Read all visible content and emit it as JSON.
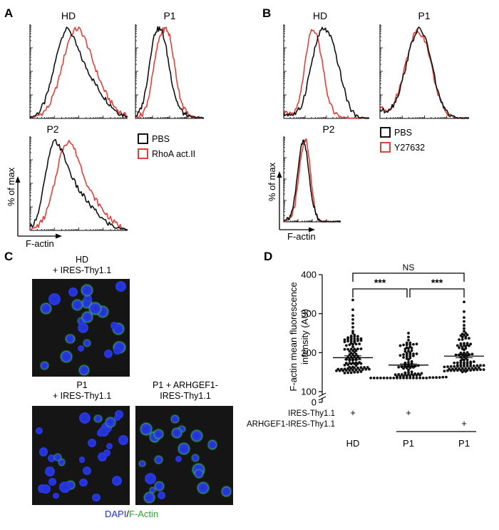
{
  "panels": {
    "A": {
      "label": "A",
      "titles": [
        "HD",
        "P1",
        "P2"
      ],
      "legend": [
        "PBS",
        "RhoA act.II"
      ],
      "ylabel": "% of max",
      "xlabel": "F-actin"
    },
    "B": {
      "label": "B",
      "titles": [
        "HD",
        "P1",
        "P2"
      ],
      "legend": [
        "PBS",
        "Y27632"
      ],
      "ylabel": "% of max",
      "xlabel": "F-actin"
    },
    "C": {
      "label": "C",
      "titles": [
        "HD\n+ IRES-Thy1.1",
        "P1\n+ IRES-Thy1.1",
        "P1 + ARHGEF1-\nIRES-Thy1.1"
      ],
      "caption_dapi": "DAPI",
      "caption_sep": "/",
      "caption_factin": "F-Actin"
    },
    "D": {
      "label": "D",
      "significance": [
        "NS",
        "***",
        "***"
      ],
      "row_labels": [
        "IRES-Thy1.1",
        "ARHGEF1-IRES-Thy1.1"
      ],
      "plus": "+",
      "groups": [
        "HD",
        "P1",
        "P1"
      ]
    }
  },
  "colors": {
    "pbs": "#111111",
    "treated": "#e0403a",
    "dapi": "#1f2fd0",
    "factin": "#3ec93e",
    "scatter": "#111111"
  },
  "chart_data": [
    {
      "type": "line",
      "panel": "A",
      "title": "HD",
      "ylabel": "% of max",
      "xlabel": "F-actin",
      "x": [
        0,
        0.05,
        0.1,
        0.15,
        0.2,
        0.25,
        0.3,
        0.35,
        0.4,
        0.45,
        0.5,
        0.55,
        0.6,
        0.65,
        0.7,
        0.75,
        0.8,
        0.85,
        0.9,
        0.95,
        1
      ],
      "series": [
        {
          "name": "PBS",
          "values": [
            1,
            3,
            8,
            18,
            35,
            58,
            82,
            97,
            100,
            88,
            75,
            62,
            52,
            42,
            33,
            25,
            18,
            12,
            7,
            4,
            2
          ]
        },
        {
          "name": "RhoA act.II",
          "values": [
            1,
            2,
            4,
            8,
            15,
            28,
            45,
            68,
            88,
            98,
            100,
            92,
            78,
            62,
            47,
            34,
            23,
            15,
            9,
            5,
            2
          ]
        }
      ]
    },
    {
      "type": "line",
      "panel": "A",
      "title": "P1",
      "ylabel": "% of max",
      "xlabel": "F-actin",
      "x": [
        0,
        0.05,
        0.1,
        0.15,
        0.2,
        0.25,
        0.3,
        0.35,
        0.4,
        0.45,
        0.5,
        0.55,
        0.6,
        0.65,
        0.7,
        0.75,
        0.8,
        0.85,
        0.9,
        0.95,
        1
      ],
      "series": [
        {
          "name": "PBS",
          "values": [
            2,
            6,
            15,
            32,
            58,
            85,
            98,
            100,
            95,
            78,
            55,
            35,
            20,
            11,
            6,
            3,
            2,
            1,
            1,
            1,
            0
          ]
        },
        {
          "name": "RhoA act.II",
          "values": [
            1,
            2,
            5,
            12,
            26,
            48,
            72,
            90,
            98,
            100,
            92,
            70,
            45,
            25,
            13,
            6,
            3,
            2,
            1,
            1,
            0
          ]
        }
      ]
    },
    {
      "type": "line",
      "panel": "A",
      "title": "P2",
      "ylabel": "% of max",
      "xlabel": "F-actin",
      "x": [
        0,
        0.05,
        0.1,
        0.15,
        0.2,
        0.25,
        0.3,
        0.35,
        0.4,
        0.45,
        0.5,
        0.55,
        0.6,
        0.65,
        0.7,
        0.75,
        0.8,
        0.85,
        0.9,
        0.95,
        1
      ],
      "series": [
        {
          "name": "PBS",
          "values": [
            3,
            10,
            26,
            55,
            85,
            100,
            95,
            82,
            68,
            55,
            45,
            38,
            30,
            24,
            18,
            12,
            8,
            5,
            3,
            2,
            1
          ]
        },
        {
          "name": "RhoA act.II",
          "values": [
            1,
            3,
            7,
            15,
            30,
            52,
            78,
            95,
            100,
            92,
            78,
            62,
            48,
            38,
            30,
            22,
            16,
            10,
            6,
            3,
            1
          ]
        }
      ]
    },
    {
      "type": "line",
      "panel": "B",
      "title": "HD",
      "ylabel": "% of max",
      "xlabel": "F-actin",
      "x": [
        0,
        0.05,
        0.1,
        0.15,
        0.2,
        0.25,
        0.3,
        0.35,
        0.4,
        0.45,
        0.5,
        0.55,
        0.6,
        0.65,
        0.7,
        0.75,
        0.8,
        0.85,
        0.9,
        0.95,
        1
      ],
      "series": [
        {
          "name": "PBS",
          "values": [
            4,
            5,
            4,
            6,
            12,
            28,
            50,
            72,
            90,
            100,
            98,
            90,
            75,
            55,
            35,
            18,
            8,
            3,
            1,
            0,
            0
          ]
        },
        {
          "name": "Y27632",
          "values": [
            4,
            6,
            5,
            10,
            28,
            62,
            92,
            100,
            88,
            62,
            32,
            14,
            6,
            2,
            1,
            0,
            0,
            0,
            0,
            0,
            0
          ]
        }
      ]
    },
    {
      "type": "line",
      "panel": "B",
      "title": "P1",
      "ylabel": "% of max",
      "xlabel": "F-actin",
      "x": [
        0,
        0.05,
        0.1,
        0.15,
        0.2,
        0.25,
        0.3,
        0.35,
        0.4,
        0.45,
        0.5,
        0.55,
        0.6,
        0.65,
        0.7,
        0.75,
        0.8,
        0.85,
        0.9,
        0.95,
        1
      ],
      "series": [
        {
          "name": "PBS",
          "values": [
            10,
            8,
            10,
            15,
            25,
            42,
            62,
            82,
            95,
            100,
            92,
            75,
            52,
            30,
            15,
            7,
            3,
            1,
            0,
            0,
            0
          ]
        },
        {
          "name": "Y27632",
          "values": [
            12,
            9,
            11,
            16,
            27,
            45,
            66,
            85,
            98,
            96,
            88,
            72,
            48,
            28,
            14,
            6,
            3,
            1,
            0,
            0,
            0
          ]
        }
      ]
    },
    {
      "type": "line",
      "panel": "B",
      "title": "P2",
      "ylabel": "% of max",
      "xlabel": "F-actin",
      "x": [
        0,
        0.05,
        0.1,
        0.15,
        0.2,
        0.25,
        0.3,
        0.35,
        0.4,
        0.45,
        0.5,
        0.55,
        0.6,
        0.65,
        0.7,
        0.75,
        0.8,
        0.85,
        0.9,
        0.95,
        1
      ],
      "series": [
        {
          "name": "PBS",
          "values": [
            2,
            3,
            6,
            14,
            32,
            62,
            92,
            100,
            85,
            55,
            28,
            12,
            4,
            1,
            0,
            0,
            0,
            0,
            0,
            0,
            0
          ]
        },
        {
          "name": "Y27632",
          "values": [
            1,
            2,
            4,
            9,
            22,
            48,
            80,
            98,
            100,
            75,
            40,
            16,
            5,
            1,
            0,
            0,
            0,
            0,
            0,
            0,
            0
          ]
        }
      ]
    },
    {
      "type": "scatter",
      "panel": "D",
      "ylabel": "F-actin mean fluorescence intensity (AU)",
      "ylim": [
        100,
        400
      ],
      "yticks": [
        0,
        100,
        200,
        300,
        400
      ],
      "axis_break": true,
      "categories": [
        "HD",
        "P1",
        "P1"
      ],
      "groups": [
        {
          "label": "HD",
          "IRES-Thy1.1": "+",
          "ARHGEF1-IRES-Thy1.1": "",
          "mean": 187,
          "sem": 5,
          "n": 90,
          "min": 140,
          "max": 335,
          "extreme_values": [
            335,
            310,
            295,
            285,
            275,
            265,
            255,
            250,
            245,
            240,
            235
          ]
        },
        {
          "label": "P1",
          "IRES-Thy1.1": "+",
          "ARHGEF1-IRES-Thy1.1": "",
          "mean": 168,
          "sem": 3,
          "n": 90,
          "min": 135,
          "max": 250,
          "extreme_values": [
            250,
            240,
            232,
            225,
            220,
            215
          ]
        },
        {
          "label": "P1",
          "IRES-Thy1.1": "",
          "ARHGEF1-IRES-Thy1.1": "+",
          "mean": 191,
          "sem": 4,
          "n": 90,
          "min": 145,
          "max": 330,
          "extreme_values": [
            330,
            305,
            290,
            280,
            270,
            262,
            255,
            250,
            245,
            240
          ]
        }
      ],
      "significance": [
        {
          "pair": [
            "HD",
            "P1 + ARHGEF1"
          ],
          "label": "NS"
        },
        {
          "pair": [
            "HD",
            "P1"
          ],
          "label": "***"
        },
        {
          "pair": [
            "P1",
            "P1 + ARHGEF1"
          ],
          "label": "***"
        }
      ]
    }
  ]
}
